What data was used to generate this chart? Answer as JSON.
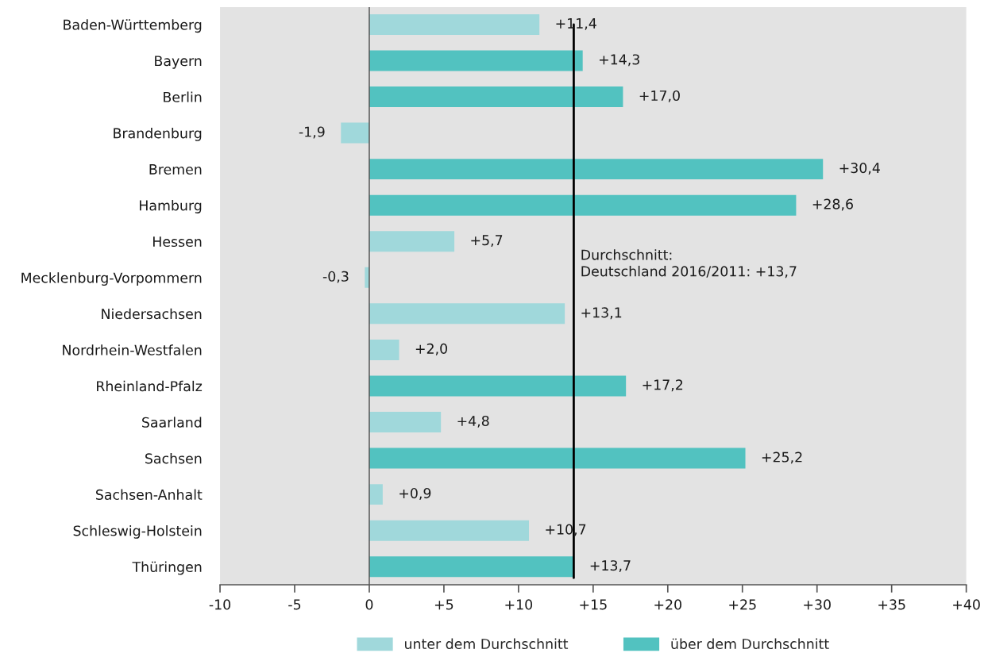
{
  "chart_data": {
    "type": "bar",
    "orientation": "horizontal",
    "categories": [
      "Baden-Württemberg",
      "Bayern",
      "Berlin",
      "Brandenburg",
      "Bremen",
      "Hamburg",
      "Hessen",
      "Mecklenburg-Vorpommern",
      "Niedersachsen",
      "Nordrhein-Westfalen",
      "Rheinland-Pfalz",
      "Saarland",
      "Sachsen",
      "Sachsen-Anhalt",
      "Schleswig-Holstein",
      "Thüringen"
    ],
    "series": [
      {
        "name": "unter dem Durchschnitt",
        "color": "#a0d8db",
        "values": [
          11.4,
          null,
          null,
          -1.9,
          null,
          null,
          5.7,
          -0.3,
          13.1,
          2.0,
          null,
          4.8,
          null,
          0.9,
          10.7,
          null
        ],
        "value_labels": [
          "+11,4",
          null,
          null,
          "-1,9",
          null,
          null,
          "+5,7",
          "-0,3",
          "+13,1",
          "+2,0",
          null,
          "+4,8",
          null,
          "+0,9",
          "+10,7",
          null
        ]
      },
      {
        "name": "über dem Durchschnitt",
        "color": "#52c2c0",
        "values": [
          null,
          14.3,
          17.0,
          null,
          30.4,
          28.6,
          null,
          null,
          null,
          null,
          17.2,
          null,
          25.2,
          null,
          null,
          13.7
        ],
        "value_labels": [
          null,
          "+14,3",
          "+17,0",
          null,
          "+30,4",
          "+28,6",
          null,
          null,
          null,
          null,
          "+17,2",
          null,
          "+25,2",
          null,
          null,
          "+13,7"
        ]
      }
    ],
    "xlim": [
      -10,
      40
    ],
    "xticks": [
      -10,
      -5,
      0,
      {
        "value": 5,
        "label": "+5"
      },
      {
        "value": 10,
        "label": "+10"
      },
      {
        "value": 15,
        "label": "+15"
      },
      {
        "value": 20,
        "label": "+20"
      },
      {
        "value": 25,
        "label": "+25"
      },
      {
        "value": 30,
        "label": "+30"
      },
      {
        "value": 35,
        "label": "+35"
      },
      {
        "value": 40,
        "label": "+40"
      }
    ],
    "ref_lines": [
      {
        "axis": "x",
        "value": 0,
        "color": "#555555"
      },
      {
        "axis": "x",
        "value": 13.7,
        "label": "Durchschnitt:\nDeutschland 2016/2011: +13,7",
        "color": "#000000"
      }
    ],
    "grid": false,
    "legend": "bottom"
  }
}
